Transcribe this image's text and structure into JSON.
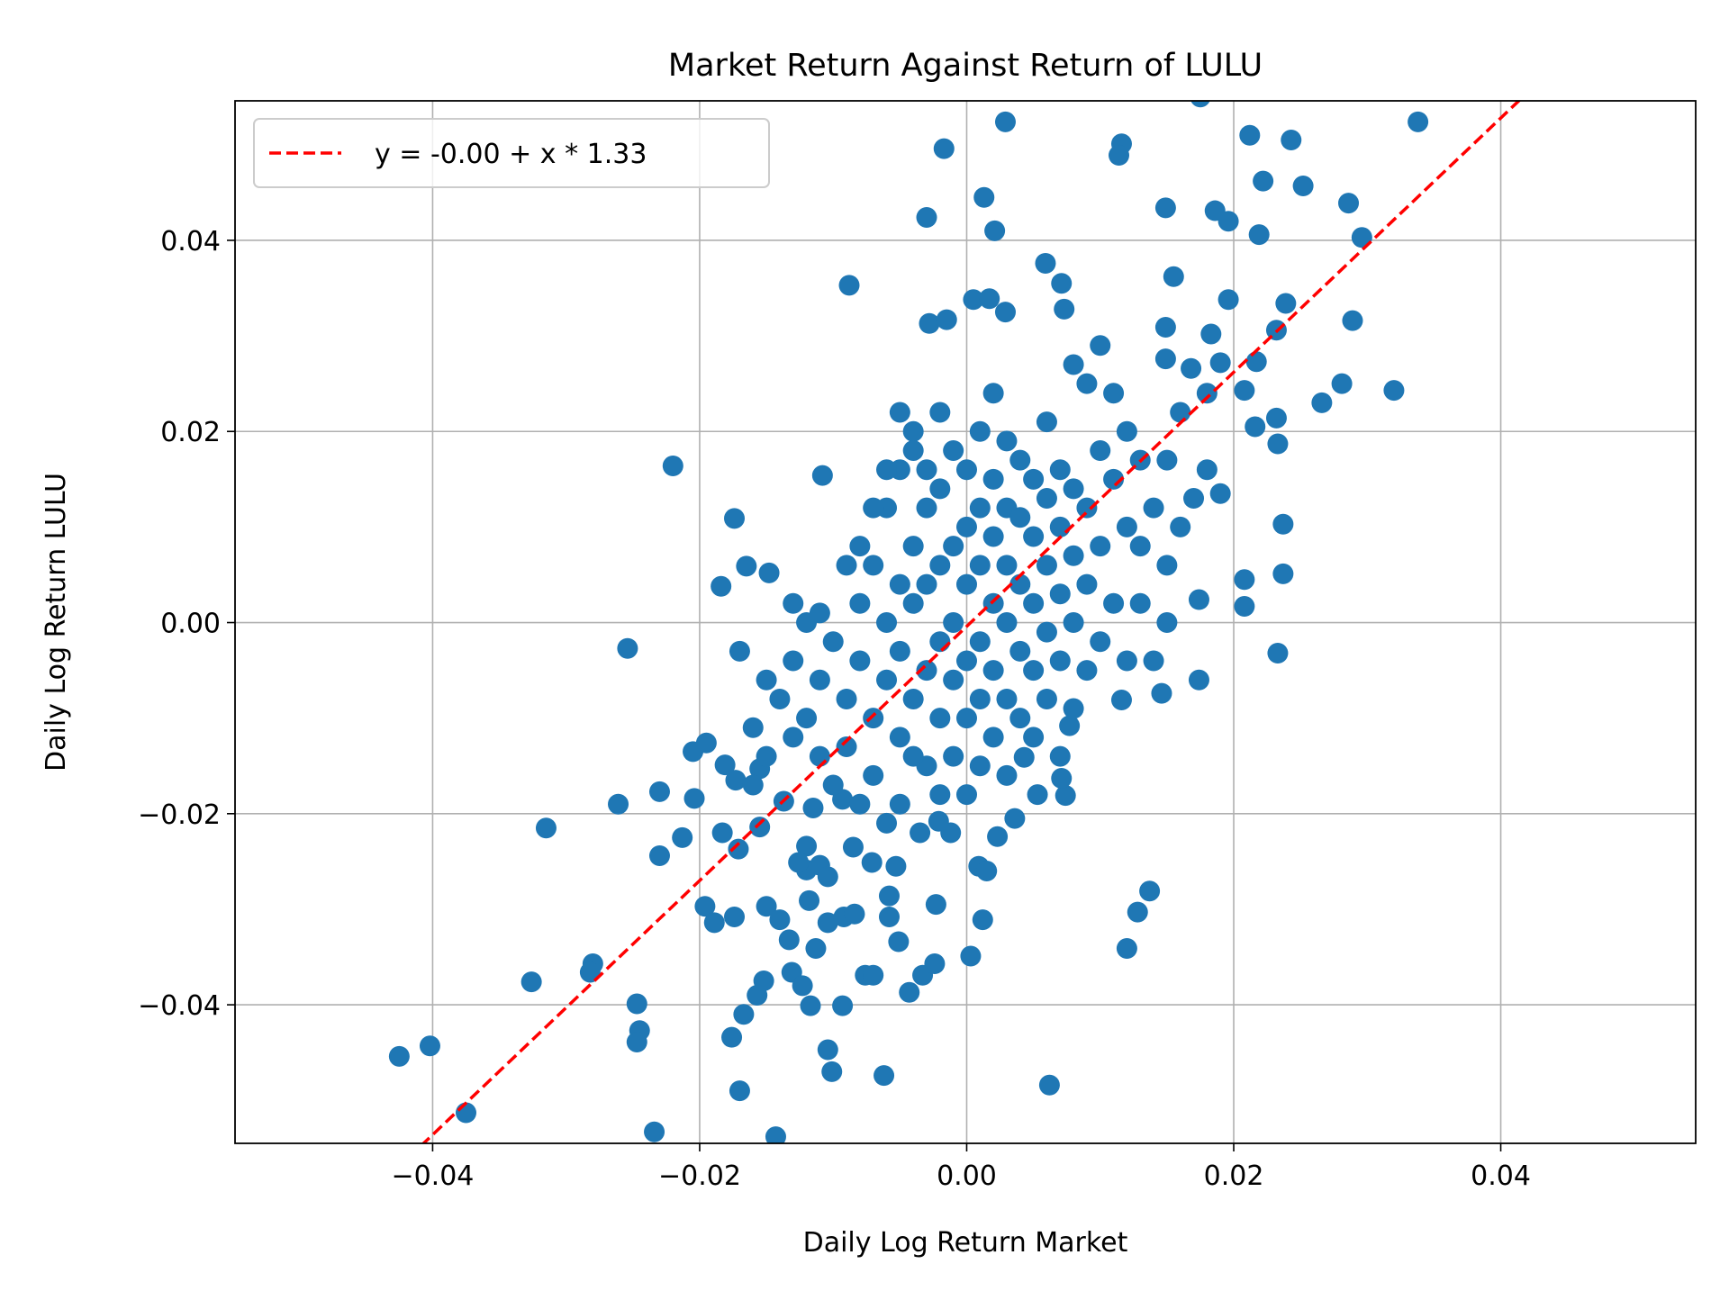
{
  "chart_data": {
    "type": "scatter",
    "title": "Market Return Against Return of LULU",
    "xlabel": "Daily Log Return Market",
    "ylabel": "Daily Log Return LULU",
    "xlim": [
      -0.0548,
      0.0546
    ],
    "ylim": [
      -0.0545,
      0.0546
    ],
    "xticks": [
      -0.04,
      -0.02,
      0.0,
      0.02,
      0.04
    ],
    "xtick_labels": [
      "−0.04",
      "−0.02",
      "0.00",
      "0.02",
      "0.04"
    ],
    "yticks": [
      -0.04,
      -0.02,
      0.0,
      0.02,
      0.04
    ],
    "ytick_labels": [
      "−0.04",
      "−0.02",
      "0.00",
      "0.02",
      "0.04"
    ],
    "grid": true,
    "legend": {
      "placement": "top-left",
      "entries": [
        "y = -0.00 + x * 1.33"
      ]
    },
    "colors": {
      "points": "#1f77b4",
      "fit_line": "#ff0000",
      "grid": "#b0b0b0"
    },
    "fit_line": {
      "intercept": -0.0004,
      "slope": 1.33
    },
    "points": [
      [
        0.0029,
        0.0524
      ],
      [
        -0.0017,
        0.0496
      ],
      [
        0.0175,
        0.055
      ],
      [
        0.0116,
        0.0501
      ],
      [
        0.0114,
        0.0489
      ],
      [
        0.0212,
        0.051
      ],
      [
        0.0243,
        0.0505
      ],
      [
        0.0338,
        0.0524
      ],
      [
        0.0222,
        0.0462
      ],
      [
        0.0252,
        0.0457
      ],
      [
        -0.003,
        0.0424
      ],
      [
        0.0013,
        0.0445
      ],
      [
        0.0021,
        0.041
      ],
      [
        0.0149,
        0.0434
      ],
      [
        0.0186,
        0.0431
      ],
      [
        0.0196,
        0.042
      ],
      [
        0.0219,
        0.0406
      ],
      [
        0.0286,
        0.0439
      ],
      [
        0.0296,
        0.0403
      ],
      [
        -0.0088,
        0.0353
      ],
      [
        0.0059,
        0.0376
      ],
      [
        0.0071,
        0.0355
      ],
      [
        0.0155,
        0.0362
      ],
      [
        0.0073,
        0.0328
      ],
      [
        0.0005,
        0.0338
      ],
      [
        0.0017,
        0.0339
      ],
      [
        0.0029,
        0.0325
      ],
      [
        -0.0028,
        0.0313
      ],
      [
        -0.0015,
        0.0317
      ],
      [
        0.0196,
        0.0338
      ],
      [
        0.0239,
        0.0334
      ],
      [
        0.0149,
        0.0309
      ],
      [
        0.0183,
        0.0302
      ],
      [
        0.0232,
        0.0306
      ],
      [
        0.0289,
        0.0316
      ],
      [
        0.0149,
        0.0276
      ],
      [
        0.0168,
        0.0266
      ],
      [
        0.019,
        0.0272
      ],
      [
        0.0217,
        0.0273
      ],
      [
        0.0208,
        0.0243
      ],
      [
        0.0266,
        0.023
      ],
      [
        0.0281,
        0.025
      ],
      [
        0.032,
        0.0243
      ],
      [
        0.0216,
        0.0205
      ],
      [
        0.0232,
        0.0214
      ],
      [
        0.0233,
        0.0187
      ],
      [
        0.019,
        0.0135
      ],
      [
        0.0237,
        0.0103
      ],
      [
        0.0208,
        0.0045
      ],
      [
        0.0208,
        0.0017
      ],
      [
        0.0237,
        0.0051
      ],
      [
        0.0233,
        -0.0032
      ],
      [
        0.0174,
        0.0024
      ],
      [
        0.0174,
        -0.006
      ],
      [
        0.0146,
        -0.0074
      ],
      [
        0.0116,
        -0.0081
      ],
      [
        -0.022,
        0.0164
      ],
      [
        -0.0108,
        0.0154
      ],
      [
        -0.0174,
        0.0109
      ],
      [
        -0.0165,
        0.0059
      ],
      [
        -0.0148,
        0.0052
      ],
      [
        -0.0184,
        0.0038
      ],
      [
        -0.0254,
        -0.0027
      ],
      [
        -0.0315,
        -0.0215
      ],
      [
        -0.0261,
        -0.019
      ],
      [
        -0.023,
        -0.0177
      ],
      [
        -0.0204,
        -0.0184
      ],
      [
        -0.023,
        -0.0244
      ],
      [
        -0.0213,
        -0.0225
      ],
      [
        -0.0205,
        -0.0135
      ],
      [
        -0.0195,
        -0.0126
      ],
      [
        -0.0326,
        -0.0376
      ],
      [
        -0.028,
        -0.0357
      ],
      [
        -0.0282,
        -0.0366
      ],
      [
        -0.0247,
        -0.0399
      ],
      [
        -0.0245,
        -0.0427
      ],
      [
        -0.0247,
        -0.0439
      ],
      [
        -0.0425,
        -0.0454
      ],
      [
        -0.0402,
        -0.0443
      ],
      [
        -0.0375,
        -0.0513
      ],
      [
        -0.0234,
        -0.0533
      ],
      [
        -0.0143,
        -0.0538
      ],
      [
        -0.0196,
        -0.0297
      ],
      [
        -0.0189,
        -0.0314
      ],
      [
        -0.0174,
        -0.0308
      ],
      [
        -0.0176,
        -0.0434
      ],
      [
        -0.017,
        -0.049
      ],
      [
        -0.0167,
        -0.041
      ],
      [
        -0.0157,
        -0.039
      ],
      [
        -0.0152,
        -0.0375
      ],
      [
        -0.0131,
        -0.0366
      ],
      [
        -0.0123,
        -0.038
      ],
      [
        -0.0117,
        -0.0401
      ],
      [
        -0.0104,
        -0.0447
      ],
      [
        -0.0101,
        -0.047
      ],
      [
        -0.0093,
        -0.0401
      ],
      [
        -0.0062,
        -0.0474
      ],
      [
        0.0062,
        -0.0484
      ],
      [
        -0.015,
        -0.0297
      ],
      [
        -0.014,
        -0.0311
      ],
      [
        -0.0133,
        -0.0332
      ],
      [
        -0.0118,
        -0.0291
      ],
      [
        -0.0113,
        -0.0341
      ],
      [
        -0.0104,
        -0.0314
      ],
      [
        -0.0092,
        -0.0308
      ],
      [
        -0.0084,
        -0.0305
      ],
      [
        -0.0076,
        -0.0369
      ],
      [
        -0.007,
        -0.0369
      ],
      [
        -0.0051,
        -0.0334
      ],
      [
        -0.0043,
        -0.0387
      ],
      [
        -0.0033,
        -0.0369
      ],
      [
        -0.0024,
        -0.0357
      ],
      [
        0.0003,
        -0.0349
      ],
      [
        -0.0058,
        -0.0308
      ],
      [
        -0.0058,
        -0.0286
      ],
      [
        -0.0023,
        -0.0295
      ],
      [
        0.0012,
        -0.0311
      ],
      [
        0.0128,
        -0.0303
      ],
      [
        0.0137,
        -0.0281
      ],
      [
        0.012,
        -0.0341
      ],
      [
        -0.012,
        -0.0259
      ],
      [
        -0.011,
        -0.0254
      ],
      [
        -0.0104,
        -0.0266
      ],
      [
        -0.012,
        -0.0234
      ],
      [
        -0.0126,
        -0.0251
      ],
      [
        0.0009,
        -0.0255
      ],
      [
        0.0015,
        -0.026
      ],
      [
        0.0023,
        -0.0224
      ],
      [
        0.0036,
        -0.0205
      ],
      [
        -0.0085,
        -0.0235
      ],
      [
        -0.0071,
        -0.0251
      ],
      [
        -0.0053,
        -0.0255
      ],
      [
        -0.0035,
        -0.022
      ],
      [
        -0.0012,
        -0.022
      ],
      [
        -0.0021,
        -0.0208
      ],
      [
        0.0074,
        -0.0181
      ],
      [
        0.0071,
        -0.0163
      ],
      [
        0.0077,
        -0.0108
      ],
      [
        0.0053,
        -0.018
      ],
      [
        0.0043,
        -0.0141
      ],
      [
        -0.0155,
        -0.0214
      ],
      [
        -0.0171,
        -0.0237
      ],
      [
        -0.0183,
        -0.022
      ],
      [
        -0.0173,
        -0.0165
      ],
      [
        -0.0181,
        -0.0149
      ],
      [
        -0.0155,
        -0.0153
      ],
      [
        -0.0137,
        -0.0187
      ],
      [
        -0.0115,
        -0.0194
      ],
      [
        -0.0093,
        -0.0185
      ],
      [
        -0.012,
        -0.01
      ],
      [
        -0.011,
        -0.006
      ],
      [
        -0.01,
        -0.002
      ],
      [
        -0.009,
        -0.008
      ],
      [
        -0.008,
        -0.004
      ],
      [
        -0.008,
        0.002
      ],
      [
        -0.007,
        -0.01
      ],
      [
        -0.007,
        0.006
      ],
      [
        -0.006,
        -0.006
      ],
      [
        -0.006,
        0.0
      ],
      [
        -0.006,
        0.012
      ],
      [
        -0.005,
        -0.012
      ],
      [
        -0.005,
        -0.003
      ],
      [
        -0.005,
        0.004
      ],
      [
        -0.005,
        0.016
      ],
      [
        -0.004,
        -0.008
      ],
      [
        -0.004,
        0.002
      ],
      [
        -0.004,
        0.008
      ],
      [
        -0.004,
        0.02
      ],
      [
        -0.003,
        -0.015
      ],
      [
        -0.003,
        -0.005
      ],
      [
        -0.003,
        0.004
      ],
      [
        -0.003,
        0.012
      ],
      [
        -0.003,
        0.016
      ],
      [
        -0.002,
        -0.018
      ],
      [
        -0.002,
        -0.01
      ],
      [
        -0.002,
        -0.002
      ],
      [
        -0.002,
        0.006
      ],
      [
        -0.002,
        0.014
      ],
      [
        -0.002,
        0.022
      ],
      [
        -0.001,
        -0.014
      ],
      [
        -0.001,
        -0.006
      ],
      [
        -0.001,
        0.0
      ],
      [
        -0.001,
        0.008
      ],
      [
        -0.001,
        0.018
      ],
      [
        0.0,
        -0.018
      ],
      [
        0.0,
        -0.01
      ],
      [
        0.0,
        -0.004
      ],
      [
        0.0,
        0.004
      ],
      [
        0.0,
        0.01
      ],
      [
        0.0,
        0.016
      ],
      [
        0.001,
        -0.015
      ],
      [
        0.001,
        -0.008
      ],
      [
        0.001,
        -0.002
      ],
      [
        0.001,
        0.006
      ],
      [
        0.001,
        0.012
      ],
      [
        0.001,
        0.02
      ],
      [
        0.002,
        -0.012
      ],
      [
        0.002,
        -0.005
      ],
      [
        0.002,
        0.002
      ],
      [
        0.002,
        0.009
      ],
      [
        0.002,
        0.015
      ],
      [
        0.002,
        0.024
      ],
      [
        0.003,
        -0.016
      ],
      [
        0.003,
        -0.008
      ],
      [
        0.003,
        0.0
      ],
      [
        0.003,
        0.006
      ],
      [
        0.003,
        0.012
      ],
      [
        0.003,
        0.019
      ],
      [
        0.004,
        -0.01
      ],
      [
        0.004,
        -0.003
      ],
      [
        0.004,
        0.004
      ],
      [
        0.004,
        0.011
      ],
      [
        0.004,
        0.017
      ],
      [
        0.005,
        -0.012
      ],
      [
        0.005,
        -0.005
      ],
      [
        0.005,
        0.002
      ],
      [
        0.005,
        0.009
      ],
      [
        0.005,
        0.015
      ],
      [
        0.006,
        -0.008
      ],
      [
        0.006,
        -0.001
      ],
      [
        0.006,
        0.006
      ],
      [
        0.006,
        0.013
      ],
      [
        0.006,
        0.021
      ],
      [
        0.007,
        -0.014
      ],
      [
        0.007,
        -0.004
      ],
      [
        0.007,
        0.003
      ],
      [
        0.007,
        0.01
      ],
      [
        0.007,
        0.016
      ],
      [
        0.008,
        -0.009
      ],
      [
        0.008,
        0.0
      ],
      [
        0.008,
        0.007
      ],
      [
        0.008,
        0.014
      ],
      [
        0.008,
        0.027
      ],
      [
        0.009,
        -0.005
      ],
      [
        0.009,
        0.004
      ],
      [
        0.009,
        0.012
      ],
      [
        0.009,
        0.025
      ],
      [
        0.01,
        -0.002
      ],
      [
        0.01,
        0.008
      ],
      [
        0.01,
        0.018
      ],
      [
        0.01,
        0.029
      ],
      [
        0.011,
        0.002
      ],
      [
        0.011,
        0.015
      ],
      [
        0.011,
        0.024
      ],
      [
        0.012,
        -0.004
      ],
      [
        0.012,
        0.01
      ],
      [
        0.012,
        0.02
      ],
      [
        0.013,
        0.002
      ],
      [
        0.013,
        0.008
      ],
      [
        0.013,
        0.017
      ],
      [
        0.014,
        -0.004
      ],
      [
        0.014,
        0.012
      ],
      [
        0.015,
        0.0
      ],
      [
        0.015,
        0.006
      ],
      [
        0.015,
        0.017
      ],
      [
        0.016,
        0.01
      ],
      [
        0.016,
        0.022
      ],
      [
        0.017,
        0.013
      ],
      [
        0.018,
        0.016
      ],
      [
        0.018,
        0.024
      ],
      [
        -0.013,
        -0.004
      ],
      [
        -0.013,
        -0.012
      ],
      [
        -0.014,
        -0.008
      ],
      [
        -0.015,
        -0.006
      ],
      [
        -0.016,
        -0.011
      ],
      [
        -0.016,
        -0.017
      ],
      [
        -0.017,
        -0.003
      ],
      [
        -0.015,
        -0.014
      ],
      [
        -0.011,
        -0.014
      ],
      [
        -0.01,
        -0.017
      ],
      [
        -0.009,
        -0.013
      ],
      [
        -0.008,
        -0.019
      ],
      [
        -0.007,
        -0.016
      ],
      [
        -0.006,
        -0.021
      ],
      [
        -0.005,
        -0.019
      ],
      [
        -0.004,
        -0.014
      ],
      [
        -0.009,
        0.006
      ],
      [
        -0.008,
        0.008
      ],
      [
        -0.007,
        0.012
      ],
      [
        -0.006,
        0.016
      ],
      [
        -0.005,
        0.022
      ],
      [
        -0.004,
        0.018
      ],
      [
        -0.012,
        0.0
      ],
      [
        -0.013,
        0.002
      ],
      [
        -0.011,
        0.001
      ]
    ]
  }
}
